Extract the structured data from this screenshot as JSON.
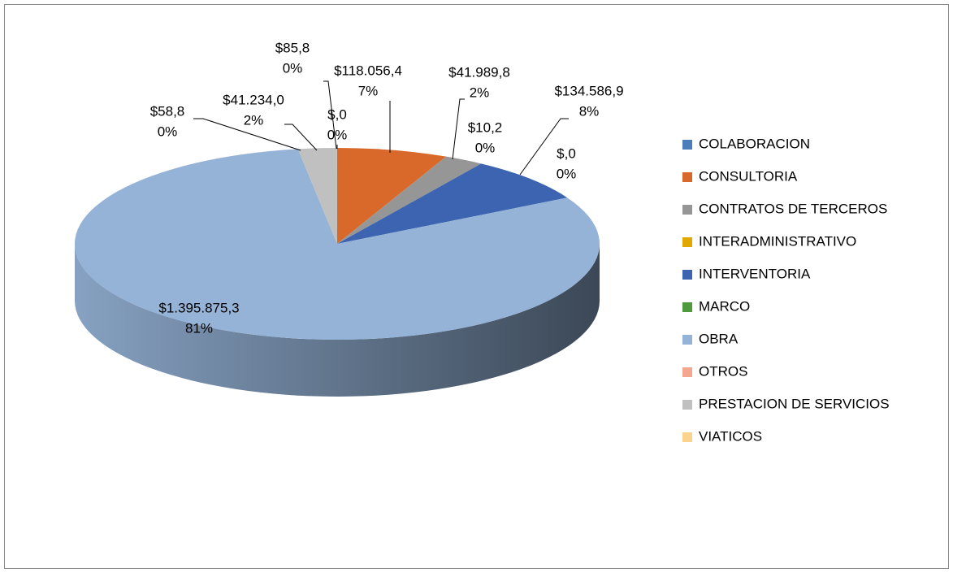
{
  "chart_data": {
    "type": "pie3d",
    "categories": [
      "COLABORACION",
      "CONSULTORIA",
      "CONTRATOS DE TERCEROS",
      "INTERADMINISTRATIVO",
      "INTERVENTORIA",
      "MARCO",
      "OBRA",
      "OTROS",
      "PRESTACION DE SERVICIOS",
      "VIATICOS"
    ],
    "values": [
      0,
      118056.4,
      41989.8,
      10.2,
      134586.9,
      0,
      1395875.3,
      58.8,
      41234.0,
      85.8
    ],
    "value_labels": [
      "$,0",
      "$118.056,4",
      "$41.989,8",
      "$10,2",
      "$134.586,9",
      "$,0",
      "$1.395.875,3",
      "$58,8",
      "$41.234,0",
      "$85,8"
    ],
    "percents": [
      0,
      7,
      2,
      0,
      8,
      0,
      81,
      0,
      2,
      0
    ],
    "percent_labels": [
      "0%",
      "7%",
      "2%",
      "0%",
      "8%",
      "0%",
      "81%",
      "0%",
      "2%",
      "0%"
    ],
    "colors": [
      "#4a7ebb",
      "#d9692a",
      "#969696",
      "#e0a800",
      "#3c64b0",
      "#4e9a3c",
      "#95b3d7",
      "#f2a78e",
      "#c0c0c0",
      "#fcd38c"
    ],
    "legend": "right"
  }
}
